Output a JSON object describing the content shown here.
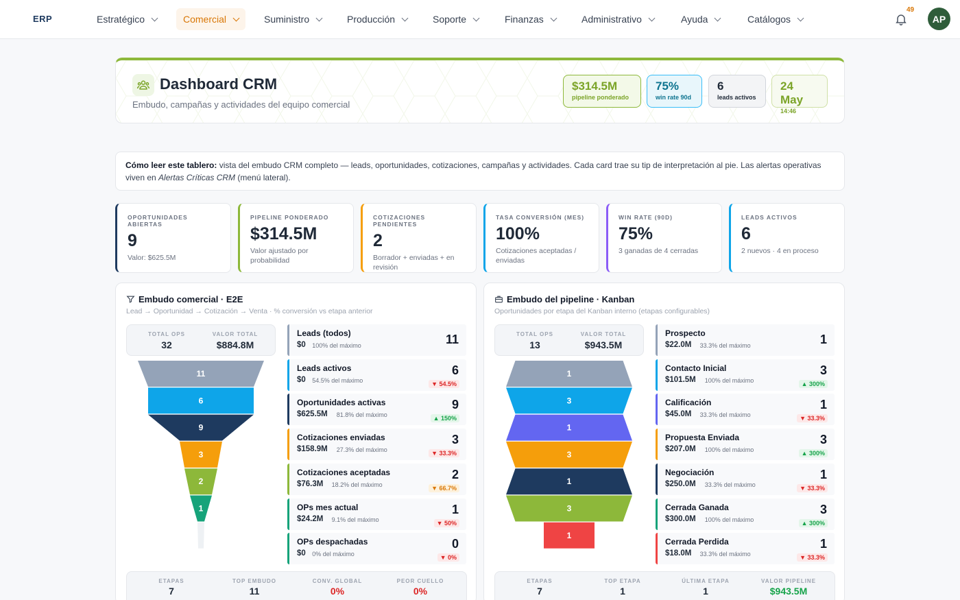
{
  "nav": {
    "brand": "ERP",
    "items": [
      {
        "label": "Estratégico",
        "active": false
      },
      {
        "label": "Comercial",
        "active": true
      },
      {
        "label": "Suministro",
        "active": false
      },
      {
        "label": "Producción",
        "active": false
      },
      {
        "label": "Soporte",
        "active": false
      },
      {
        "label": "Finanzas",
        "active": false
      },
      {
        "label": "Administrativo",
        "active": false
      },
      {
        "label": "Ayuda",
        "active": false
      },
      {
        "label": "Catálogos",
        "active": false
      }
    ],
    "notifications": "49",
    "avatar": "AP"
  },
  "header": {
    "title": "Dashboard CRM",
    "subtitle": "Embudo, campañas y actividades del equipo comercial",
    "pills": [
      {
        "value": "$314.5M",
        "label": "pipeline ponderado",
        "color": "#7ba428",
        "bg": "#f3f9e8",
        "border": "#8db83a"
      },
      {
        "value": "75%",
        "label": "win rate 90d",
        "color": "#0e7490",
        "bg": "#e8f6fb",
        "border": "#38bdf8"
      },
      {
        "value": "6",
        "label": "leads activos",
        "color": "#1f2937",
        "bg": "#f3f4f6",
        "border": "#d1d5db"
      },
      {
        "value": "24 May",
        "label": "14:46",
        "color": "#7ba428",
        "bg": "#f7faf0",
        "border": "#cfe0a6"
      }
    ]
  },
  "info": {
    "lead": "Cómo leer este tablero:",
    "text1": " vista del embudo CRM completo — leads, oportunidades, cotizaciones, campañas y actividades. Cada card trae su tip de interpretación al pie. Las alertas operativas viven en ",
    "em": "Alertas Críticas CRM",
    "text2": " (menú lateral)."
  },
  "kpis": [
    {
      "label": "Oportunidades abiertas",
      "value": "9",
      "desc": "Valor: $625.5M",
      "color": "#1e3a5f"
    },
    {
      "label": "Pipeline ponderado",
      "value": "$314.5M",
      "desc": "Valor ajustado por probabilidad",
      "color": "#8db83a"
    },
    {
      "label": "Cotizaciones pendientes",
      "value": "2",
      "desc": "Borrador + enviadas + en revisión",
      "color": "#f59e0b"
    },
    {
      "label": "Tasa conversión (mes)",
      "value": "100%",
      "desc": "Cotizaciones aceptadas / enviadas",
      "color": "#0ea5e9"
    },
    {
      "label": "Win rate (90d)",
      "value": "75%",
      "desc": "3 ganadas de 4 cerradas",
      "color": "#8b5cf6"
    },
    {
      "label": "Leads activos",
      "value": "6",
      "desc": "2 nuevos · 4 en proceso",
      "color": "#0ea5e9"
    }
  ],
  "funnel_e2e": {
    "title": "Embudo comercial · E2E",
    "subtitle": "Lead → Oportunidad → Cotización → Venta · % conversión vs etapa anterior",
    "totals": [
      {
        "label": "TOTAL OPS",
        "value": "32"
      },
      {
        "label": "VALOR TOTAL",
        "value": "$884.8M"
      }
    ],
    "stages": [
      {
        "name": "Leads (todos)",
        "value": "$0",
        "pct": "100% del máximo",
        "count": 11,
        "badge": "",
        "badge_type": "",
        "color": "#94a3b8"
      },
      {
        "name": "Leads activos",
        "value": "$0",
        "pct": "54.5% del máximo",
        "count": 6,
        "badge": "▼ 54.5%",
        "badge_type": "down",
        "color": "#0ea5e9"
      },
      {
        "name": "Oportunidades activas",
        "value": "$625.5M",
        "pct": "81.8% del máximo",
        "count": 9,
        "badge": "▲ 150%",
        "badge_type": "up",
        "color": "#1e3a5f"
      },
      {
        "name": "Cotizaciones enviadas",
        "value": "$158.9M",
        "pct": "27.3% del máximo",
        "count": 3,
        "badge": "▼ 33.3%",
        "badge_type": "down",
        "color": "#f59e0b"
      },
      {
        "name": "Cotizaciones aceptadas",
        "value": "$76.3M",
        "pct": "18.2% del máximo",
        "count": 2,
        "badge": "▼ 66.7%",
        "badge_type": "warn",
        "color": "#8db83a"
      },
      {
        "name": "OPs mes actual",
        "value": "$24.2M",
        "pct": "9.1% del máximo",
        "count": 1,
        "badge": "▼ 50%",
        "badge_type": "down",
        "color": "#16a37a"
      },
      {
        "name": "OPs despachadas",
        "value": "$0",
        "pct": "0% del máximo",
        "count": 0,
        "badge": "▼ 0%",
        "badge_type": "down",
        "color": "#16a37a"
      }
    ],
    "footer": [
      {
        "label": "ETAPAS",
        "value": "7",
        "color": "#1f2937"
      },
      {
        "label": "TOP EMBUDO",
        "value": "11",
        "color": "#1f2937"
      },
      {
        "label": "CONV. GLOBAL",
        "value": "0%",
        "color": "#dc2626"
      },
      {
        "label": "PEOR CUELLO",
        "value": "0%",
        "color": "#dc2626"
      }
    ]
  },
  "funnel_kanban": {
    "title": "Embudo del pipeline · Kanban",
    "subtitle": "Oportunidades por etapa del Kanban interno (etapas configurables)",
    "totals": [
      {
        "label": "TOTAL OPS",
        "value": "13"
      },
      {
        "label": "VALOR TOTAL",
        "value": "$943.5M"
      }
    ],
    "stages": [
      {
        "name": "Prospecto",
        "value": "$22.0M",
        "pct": "33.3% del máximo",
        "count": 1,
        "badge": "",
        "badge_type": "",
        "color": "#94a3b8"
      },
      {
        "name": "Contacto Inicial",
        "value": "$101.5M",
        "pct": "100% del máximo",
        "count": 3,
        "badge": "▲ 300%",
        "badge_type": "up",
        "color": "#0ea5e9"
      },
      {
        "name": "Calificación",
        "value": "$45.0M",
        "pct": "33.3% del máximo",
        "count": 1,
        "badge": "▼ 33.3%",
        "badge_type": "down",
        "color": "#6366f1"
      },
      {
        "name": "Propuesta Enviada",
        "value": "$207.0M",
        "pct": "100% del máximo",
        "count": 3,
        "badge": "▲ 300%",
        "badge_type": "up",
        "color": "#f59e0b"
      },
      {
        "name": "Negociación",
        "value": "$250.0M",
        "pct": "33.3% del máximo",
        "count": 1,
        "badge": "▼ 33.3%",
        "badge_type": "down",
        "color": "#1e3a5f"
      },
      {
        "name": "Cerrada Ganada",
        "value": "$300.0M",
        "pct": "100% del máximo",
        "count": 3,
        "badge": "▲ 300%",
        "badge_type": "up",
        "color": "#16a37a"
      },
      {
        "name": "Cerrada Perdida",
        "value": "$18.0M",
        "pct": "33.3% del máximo",
        "count": 1,
        "badge": "▼ 33.3%",
        "badge_type": "down",
        "color": "#ef4444"
      }
    ],
    "funnel_colors": [
      "#94a3b8",
      "#0ea5e9",
      "#6366f1",
      "#f59e0b",
      "#1e3a5f",
      "#8db83a",
      "#ef4444"
    ],
    "footer": [
      {
        "label": "ETAPAS",
        "value": "7",
        "color": "#1f2937"
      },
      {
        "label": "TOP ETAPA",
        "value": "1",
        "color": "#1f2937"
      },
      {
        "label": "ÚLTIMA ETAPA",
        "value": "1",
        "color": "#1f2937"
      },
      {
        "label": "VALOR PIPELINE",
        "value": "$943.5M",
        "color": "#16a34a"
      }
    ]
  }
}
